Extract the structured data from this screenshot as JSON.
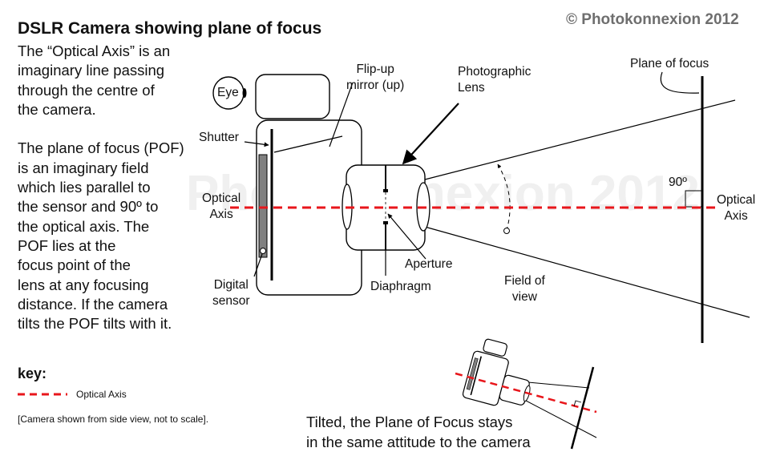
{
  "title": "DSLR Camera showing plane of focus",
  "copyright": "© Photokonnexion 2012",
  "watermark": "Photokonnexion 2012",
  "description_lines": [
    "The  “Optical Axis” is an",
    "imaginary line passing",
    "through the  centre of",
    "the camera.",
    "",
    "The plane of focus (POF)",
    "is an imaginary field",
    "which lies parallel to",
    "the sensor and 90º to",
    "the optical axis. The",
    "POF lies at the",
    "focus point of the",
    "lens at any focusing",
    "distance.  If the camera",
    "tilts the POF tilts with it."
  ],
  "labels": {
    "eye": "Eye",
    "flip_mirror": [
      "Flip-up",
      "mirror (up)"
    ],
    "photographic_lens": [
      "Photographic",
      "Lens"
    ],
    "plane_of_focus": "Plane of focus",
    "shutter": "Shutter",
    "optical_axis_left": [
      "Optical",
      "Axis"
    ],
    "optical_axis_right": [
      "Optical",
      "Axis"
    ],
    "angle": "90º",
    "digital_sensor": [
      "Digital",
      "sensor"
    ],
    "aperture": "Aperture",
    "diaphragm": "Diaphragm",
    "field_of_view": [
      "Field of",
      "view"
    ]
  },
  "key": {
    "title": "key:",
    "optical_axis_label": "Optical Axis",
    "note": "[Camera shown from side view, not to scale]."
  },
  "caption": [
    "Tilted, the Plane of Focus stays",
    "in the same attitude to the camera"
  ],
  "colors": {
    "optical_axis": "#e8161b",
    "line": "#000000",
    "sensor_fill": "#808080",
    "watermark": "#f0f0f0",
    "copyright": "#6e6e6e"
  }
}
